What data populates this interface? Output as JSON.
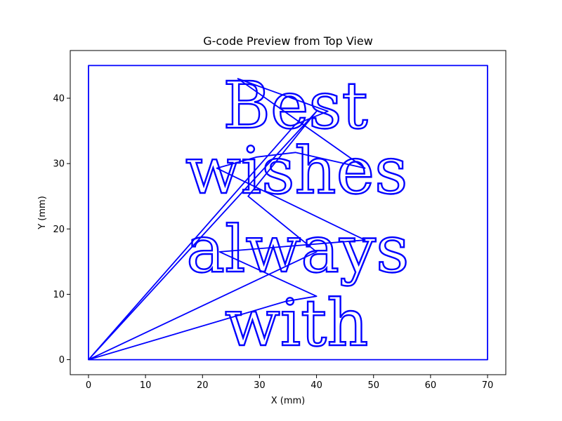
{
  "chart_data": {
    "type": "line",
    "title": "G-code Preview from Top View",
    "xlabel": "X (mm)",
    "ylabel": "Y (mm)",
    "xlim": [
      -3.2,
      73.2
    ],
    "ylim": [
      -2.3,
      47.3
    ],
    "xticks": [
      0,
      10,
      20,
      30,
      40,
      50,
      60,
      70
    ],
    "yticks": [
      0,
      10,
      20,
      30,
      40
    ],
    "grid": false,
    "color": "#0000ff",
    "series": [
      {
        "type": "border",
        "x": [
          0,
          70,
          70,
          0,
          0
        ],
        "y": [
          0,
          0,
          45,
          45,
          0
        ]
      },
      {
        "type": "travel",
        "x": [
          0,
          34.5,
          40,
          23,
          48.5,
          22.5,
          29.5,
          36.3,
          48.5,
          26.2,
          42,
          36.3,
          0,
          40,
          28,
          40,
          0
        ],
        "y": [
          0,
          8.9,
          9.7,
          16.5,
          18.3,
          29.3,
          31.0,
          31.7,
          29.3,
          43.0,
          38.0,
          36.0,
          0,
          38.0,
          25.0,
          16.5,
          0
        ]
      }
    ],
    "text_paths": [
      {
        "text": "Best",
        "x": 36.3,
        "y": 35.5
      },
      {
        "text": "wishes",
        "x": 36.5,
        "y": 25.5
      },
      {
        "text": "always",
        "x": 36.7,
        "y": 13.5
      },
      {
        "text": "with",
        "x": 36.5,
        "y": 2.2
      }
    ]
  }
}
